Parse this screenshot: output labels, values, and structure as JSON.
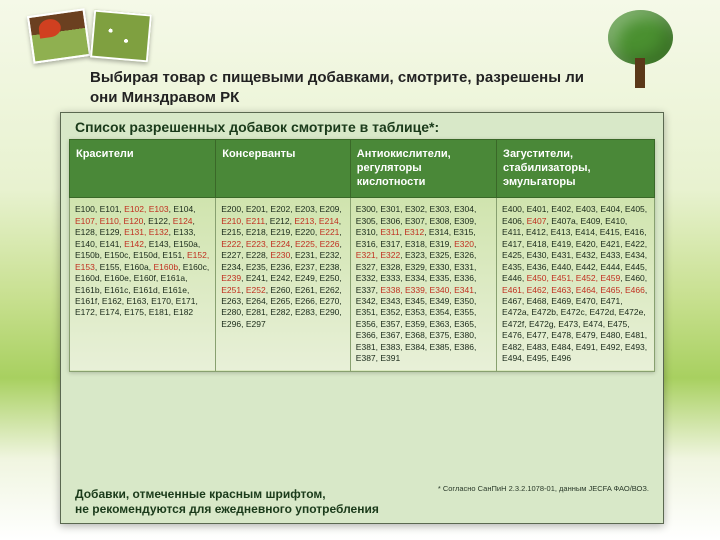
{
  "heading": "Выбирая товар с пищевыми добавками, смотрите, разрешены ли они Минздравом РК",
  "table_title": "Список разрешенных добавок смотрите в таблице*:",
  "columns": [
    "Красители",
    "Консерванты",
    "Антиокислители, регуляторы кислотности",
    "Загустители, стабилизаторы, эмульгаторы"
  ],
  "cells": {
    "dyes": [
      {
        "t": "E100, E101, "
      },
      {
        "t": "E102, E103",
        "r": 1
      },
      {
        "t": ", E104, "
      },
      {
        "t": "E107, E110, E120",
        "r": 1
      },
      {
        "t": ", E122, "
      },
      {
        "t": "E124",
        "r": 1
      },
      {
        "t": ", E128, E129, "
      },
      {
        "t": "E131, E132",
        "r": 1
      },
      {
        "t": ", E133, E140, E141, "
      },
      {
        "t": "E142",
        "r": 1
      },
      {
        "t": ", E143, E150a, E150b, E150c, E150d, E151, "
      },
      {
        "t": "E152, E153",
        "r": 1
      },
      {
        "t": ", E155, E160a, "
      },
      {
        "t": "E160b",
        "r": 1
      },
      {
        "t": ", E160c, E160d, E160e, E160f, E161a, E161b, E161c, E161d, E161e, E161f, E162, E163, E170, E171, E172, E174, E175, E181, E182"
      }
    ],
    "preserv": [
      {
        "t": "E200, E201, E202, E203, E209, "
      },
      {
        "t": "E210, E211",
        "r": 1
      },
      {
        "t": ", E212, "
      },
      {
        "t": "E213, E214",
        "r": 1
      },
      {
        "t": ", E215, E218, E219, E220, "
      },
      {
        "t": "E221",
        "r": 1
      },
      {
        "t": ", "
      },
      {
        "t": "E222",
        "r": 1
      },
      {
        "t": ", "
      },
      {
        "t": "E223, E224",
        "r": 1
      },
      {
        "t": ", "
      },
      {
        "t": "E225, E226",
        "r": 1
      },
      {
        "t": ", E227, E228, "
      },
      {
        "t": "E230",
        "r": 1
      },
      {
        "t": ", E231, E232, E234, E235, E236, E237, E238, "
      },
      {
        "t": "E239",
        "r": 1
      },
      {
        "t": ", E241, E242, E249, E250, "
      },
      {
        "t": "E251",
        "r": 1
      },
      {
        "t": ", "
      },
      {
        "t": "E252",
        "r": 1
      },
      {
        "t": ", E260, E261, E262, E263, E264, E265, E266, E270, E280, E281, E282, E283, E290, E296, E297"
      }
    ],
    "antiox": [
      {
        "t": "E300, E301, E302, E303, E304, E305, E306, E307, E308, E309, E310, "
      },
      {
        "t": "E311",
        "r": 1
      },
      {
        "t": ", "
      },
      {
        "t": "E312",
        "r": 1
      },
      {
        "t": ", E314, E315, E316, E317, E318, E319, "
      },
      {
        "t": "E320",
        "r": 1
      },
      {
        "t": ", "
      },
      {
        "t": "E321, E322",
        "r": 1
      },
      {
        "t": ", E323, E325, E326, E327, E328, E329, E330, E331, E332, E333, E334, E335, E336, E337, "
      },
      {
        "t": "E338, E339, E340, E341",
        "r": 1
      },
      {
        "t": ", E342, E343, E345, E349, E350, E351, E352, E353, E354, E355, E356, E357, E359, E363, E365, E366, E367, E368, E375, E380, E381, E383, E384, E385, E386, E387, E391"
      }
    ],
    "thick": [
      {
        "t": "E400, E401, E402, E403, E404, E405, E406, "
      },
      {
        "t": "E407",
        "r": 1
      },
      {
        "t": ", E407a, E409, E410, E411, E412, E413, E414, E415, E416, E417, E418, E419, E420, E421, E422, E425, E430, E431, E432, E433, E434, E435, E436, E440, E442, E444, E445, E446, "
      },
      {
        "t": "E450, E451, E452, E459",
        "r": 1
      },
      {
        "t": ", E460, "
      },
      {
        "t": "E461, E462, E463",
        "r": 1
      },
      {
        "t": ", "
      },
      {
        "t": "E464, E465, E466",
        "r": 1
      },
      {
        "t": ", E467, E468, E469, E470, E471, E472a, E472b, E472c, E472d, E472e, E472f, E472g, E473, E474, E475, E476, E477, E478, E479, E480, E481, E482, E483, E484, E491, E492, E493, E494, E495, E496"
      }
    ]
  },
  "footnote": "* Согласно СанПиН 2.3.2.1078-01, данным JECFA ФАО/ВОЗ.",
  "footer_line1": "Добавки, отмеченные красным шрифтом,",
  "footer_line2": "не рекомендуются для ежедневного употребления",
  "style": {
    "header_bg": "#4a8838",
    "red": "#c03020",
    "panel_bg": "#d8e8c8"
  }
}
